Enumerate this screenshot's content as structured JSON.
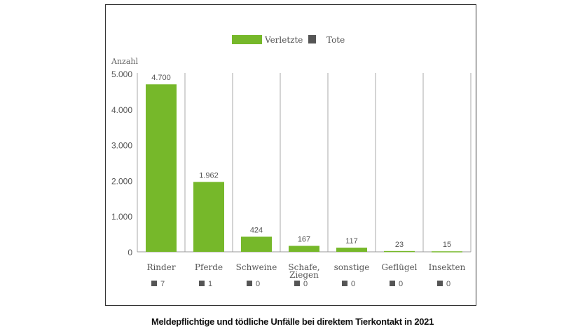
{
  "chart_data": {
    "type": "bar",
    "title": "Meldepflichtige und tödliche Unfälle bei direktem Tierkontakt in 2021",
    "ylabel": "Anzahl",
    "ylim": [
      0,
      5000
    ],
    "yticks": [
      0,
      1000,
      2000,
      3000,
      4000,
      5000
    ],
    "ytick_labels": [
      "0",
      "1.000",
      "2.000",
      "3.000",
      "4.000",
      "5.000"
    ],
    "categories": [
      "Rinder",
      "Pferde",
      "Schweine",
      "Schafe, Ziegen",
      "sonstige",
      "Geflügel",
      "Insekten"
    ],
    "series": [
      {
        "name": "Verletzte",
        "color": "#76b82a",
        "values": [
          4700,
          1962,
          424,
          167,
          117,
          23,
          15
        ],
        "labels": [
          "4.700",
          "1.962",
          "424",
          "167",
          "117",
          "23",
          "15"
        ]
      },
      {
        "name": "Tote",
        "color": "#555555",
        "values": [
          7,
          1,
          0,
          0,
          0,
          0,
          0
        ],
        "labels": [
          "7",
          "1",
          "0",
          "0",
          "0",
          "0",
          "0"
        ]
      }
    ],
    "legend": "top-center",
    "grid": "vertical category separators"
  }
}
